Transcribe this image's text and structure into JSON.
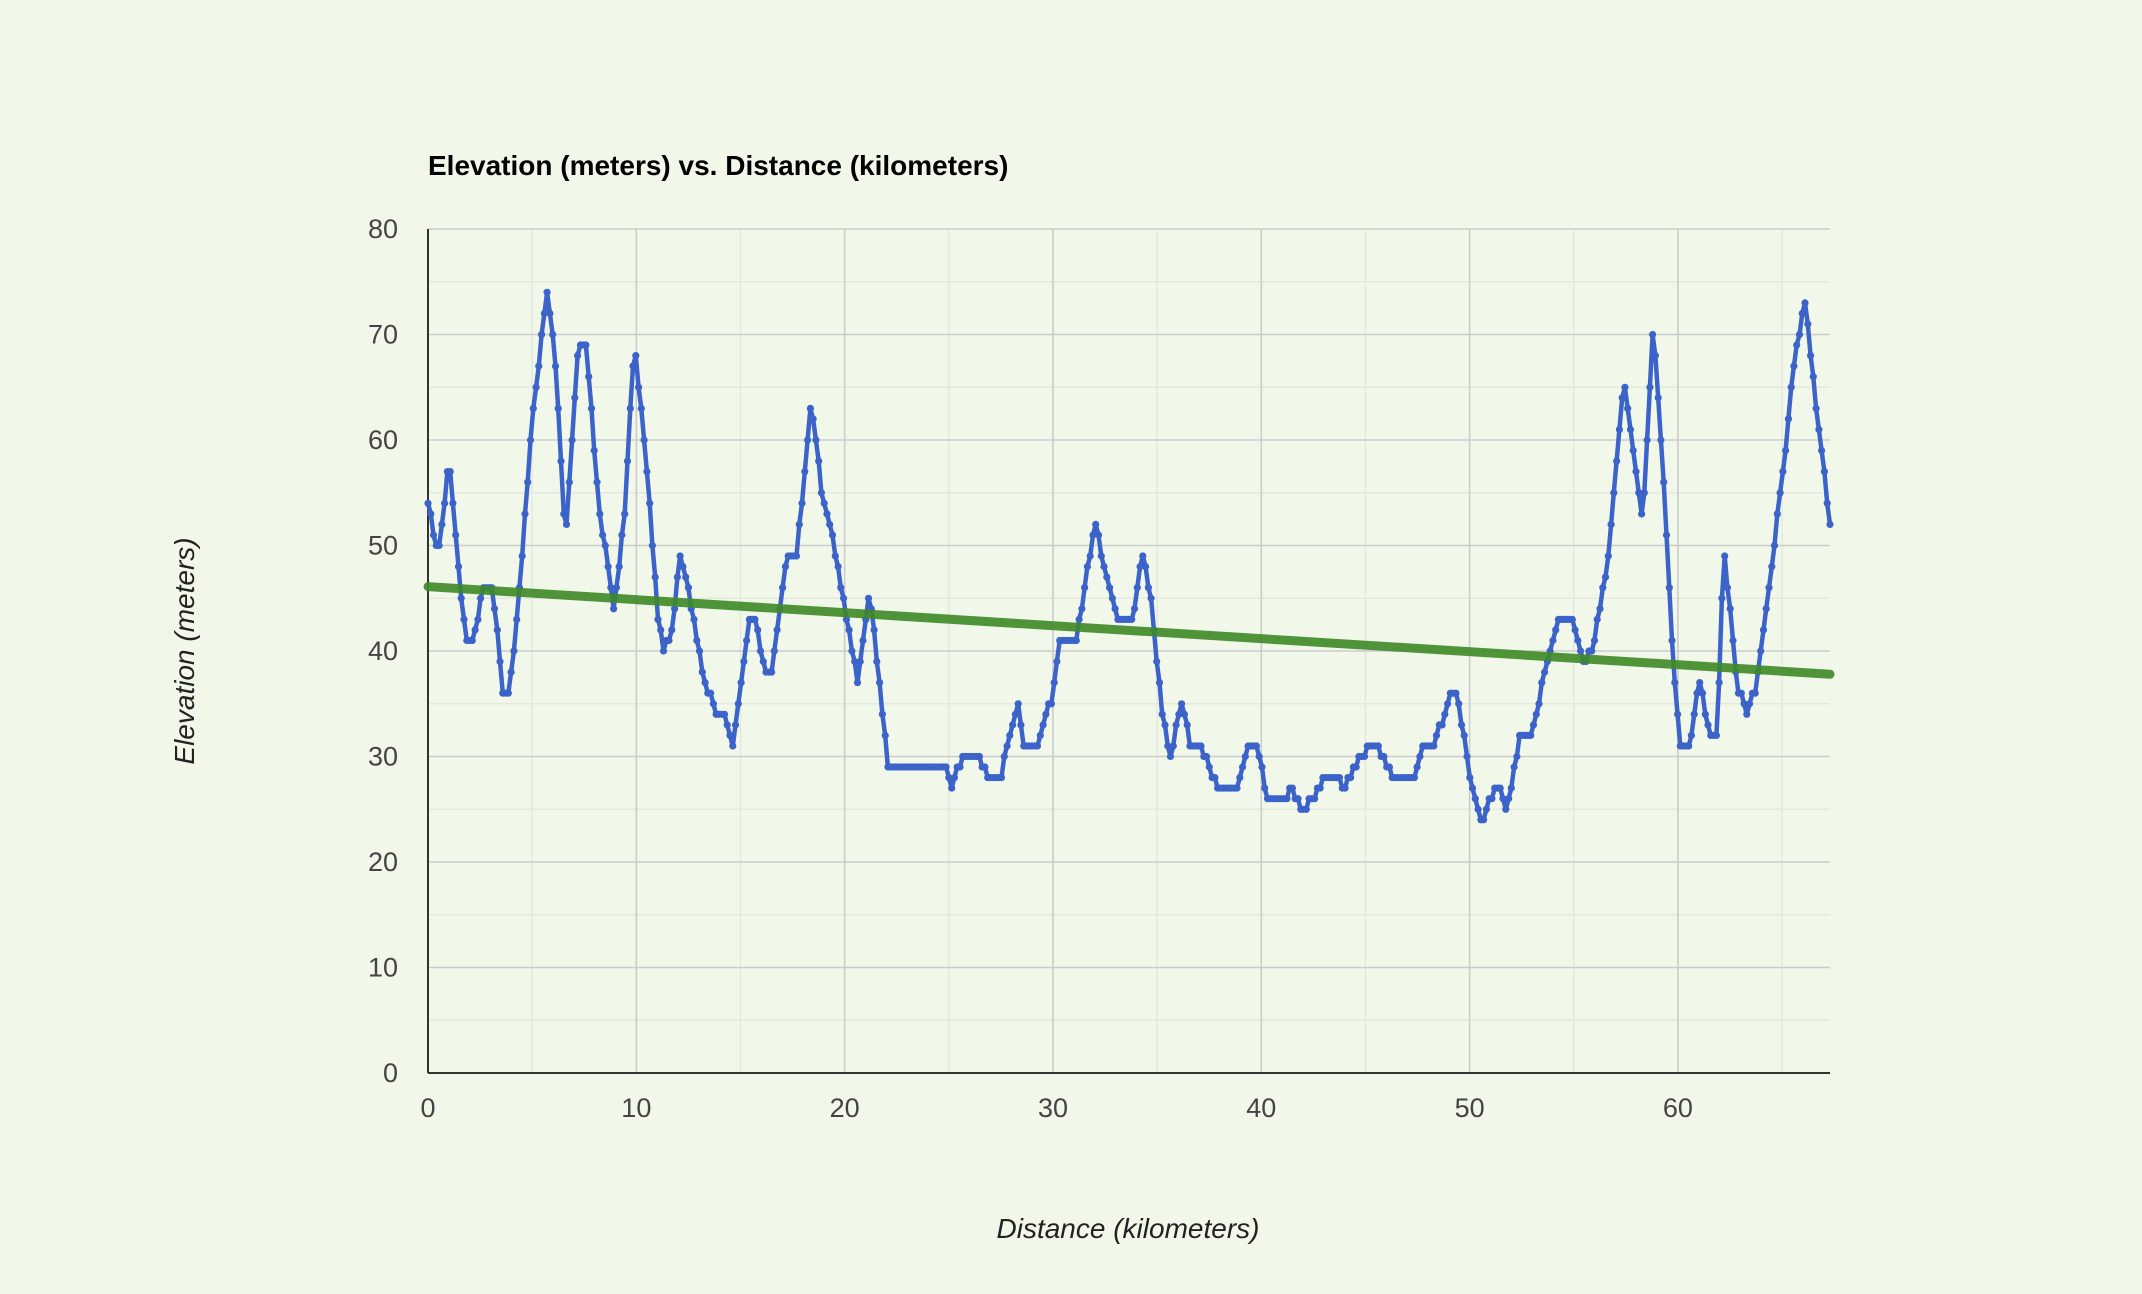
{
  "chart_data": {
    "type": "scatter",
    "title": "Elevation (meters) vs. Distance (kilometers)",
    "xlabel": "Distance (kilometers)",
    "ylabel": "Elevation (meters)",
    "xlim": [
      0,
      67.3
    ],
    "ylim": [
      0,
      80
    ],
    "x_ticks": [
      0,
      10,
      20,
      30,
      40,
      50,
      60
    ],
    "y_ticks": [
      0,
      10,
      20,
      30,
      40,
      50,
      60,
      70,
      80
    ],
    "grid": true,
    "legend": "none",
    "series": [
      {
        "name": "Elevation",
        "color": "#3c63c9",
        "profile_knots": [
          [
            0,
            54
          ],
          [
            0.5,
            49
          ],
          [
            1.0,
            58
          ],
          [
            1.8,
            41
          ],
          [
            2.2,
            41
          ],
          [
            2.6,
            46
          ],
          [
            3.1,
            46
          ],
          [
            3.6,
            36
          ],
          [
            3.9,
            36
          ],
          [
            4.4,
            46
          ],
          [
            5.0,
            62
          ],
          [
            5.7,
            74
          ],
          [
            6.1,
            68
          ],
          [
            6.6,
            50
          ],
          [
            7.2,
            69
          ],
          [
            7.6,
            69
          ],
          [
            8.2,
            54
          ],
          [
            8.9,
            44
          ],
          [
            9.4,
            52
          ],
          [
            9.9,
            69
          ],
          [
            10.4,
            60
          ],
          [
            11.0,
            44
          ],
          [
            11.3,
            40
          ],
          [
            11.7,
            42
          ],
          [
            12.1,
            49
          ],
          [
            12.5,
            46
          ],
          [
            13.2,
            38
          ],
          [
            13.8,
            34
          ],
          [
            14.2,
            34
          ],
          [
            14.6,
            31
          ],
          [
            15.4,
            43
          ],
          [
            15.7,
            43
          ],
          [
            16.2,
            38
          ],
          [
            16.5,
            38
          ],
          [
            17.2,
            49
          ],
          [
            17.7,
            49
          ],
          [
            18.4,
            64
          ],
          [
            18.9,
            55
          ],
          [
            19.5,
            50
          ],
          [
            20.3,
            41
          ],
          [
            20.6,
            37
          ],
          [
            21.2,
            46
          ],
          [
            21.5,
            40
          ],
          [
            22.1,
            29
          ],
          [
            24.8,
            29
          ],
          [
            25.1,
            27
          ],
          [
            25.7,
            30
          ],
          [
            26.4,
            30
          ],
          [
            26.9,
            28
          ],
          [
            27.5,
            28
          ],
          [
            27.9,
            32
          ],
          [
            28.3,
            35
          ],
          [
            28.6,
            31
          ],
          [
            29.3,
            31
          ],
          [
            30.0,
            36
          ],
          [
            30.3,
            41
          ],
          [
            31.1,
            41
          ],
          [
            31.6,
            47
          ],
          [
            32.0,
            52
          ],
          [
            32.5,
            48
          ],
          [
            33.1,
            43
          ],
          [
            33.8,
            43
          ],
          [
            34.3,
            49
          ],
          [
            34.7,
            45
          ],
          [
            35.2,
            35
          ],
          [
            35.6,
            30
          ],
          [
            36.2,
            35
          ],
          [
            36.6,
            31
          ],
          [
            37.1,
            31
          ],
          [
            37.7,
            28
          ],
          [
            38.1,
            27
          ],
          [
            38.9,
            27
          ],
          [
            39.4,
            31
          ],
          [
            39.8,
            31
          ],
          [
            40.3,
            26
          ],
          [
            41.1,
            26
          ],
          [
            41.5,
            27
          ],
          [
            42.0,
            25
          ],
          [
            42.5,
            26
          ],
          [
            43.1,
            28
          ],
          [
            43.6,
            28
          ],
          [
            44.0,
            27
          ],
          [
            44.5,
            29
          ],
          [
            45.2,
            31
          ],
          [
            45.6,
            31
          ],
          [
            46.3,
            28
          ],
          [
            47.3,
            28
          ],
          [
            47.7,
            31
          ],
          [
            48.3,
            31
          ],
          [
            49.1,
            36
          ],
          [
            49.4,
            36
          ],
          [
            50.2,
            26
          ],
          [
            50.6,
            24
          ],
          [
            51.2,
            27
          ],
          [
            51.5,
            27
          ],
          [
            51.8,
            25
          ],
          [
            52.4,
            32
          ],
          [
            53.0,
            32
          ],
          [
            53.6,
            38
          ],
          [
            54.3,
            43
          ],
          [
            55.0,
            43
          ],
          [
            55.4,
            39
          ],
          [
            55.9,
            40
          ],
          [
            56.6,
            48
          ],
          [
            57.4,
            66
          ],
          [
            58.3,
            52
          ],
          [
            58.8,
            71
          ],
          [
            59.3,
            57
          ],
          [
            59.8,
            38
          ],
          [
            60.1,
            31
          ],
          [
            60.6,
            31
          ],
          [
            61.0,
            38
          ],
          [
            61.5,
            32
          ],
          [
            61.9,
            32
          ],
          [
            62.2,
            50
          ],
          [
            62.5,
            44
          ],
          [
            62.8,
            37
          ],
          [
            63.3,
            34
          ],
          [
            63.8,
            37
          ],
          [
            64.3,
            45
          ],
          [
            65.1,
            58
          ],
          [
            65.6,
            68
          ],
          [
            66.1,
            73
          ],
          [
            66.6,
            64
          ],
          [
            67.3,
            52
          ]
        ]
      },
      {
        "name": "Trendline",
        "color": "#3f8a28",
        "x": [
          0,
          67.3
        ],
        "y": [
          46.1,
          37.8
        ]
      }
    ]
  }
}
